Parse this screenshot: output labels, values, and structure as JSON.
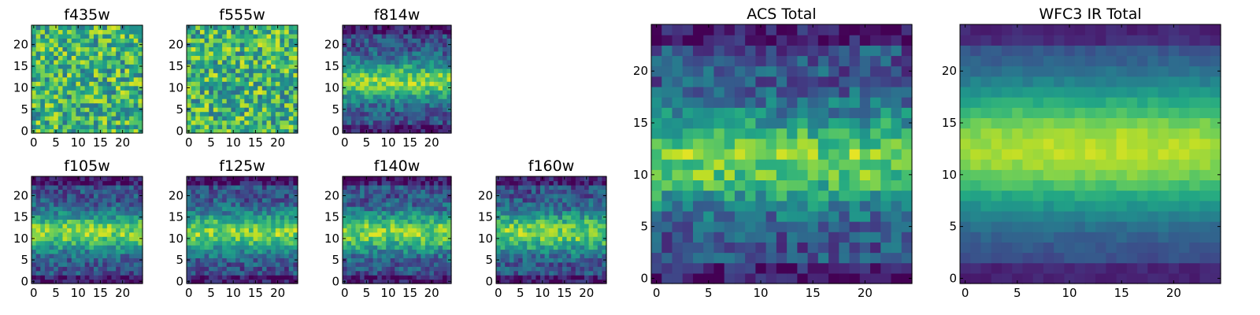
{
  "chart_data": {
    "type": "heatmap",
    "colormap": "viridis",
    "grid": false,
    "image_size": [
      25,
      25
    ],
    "panels": [
      {
        "id": "f435w",
        "title": "f435w",
        "xticks": [
          "0",
          "5",
          "10",
          "15",
          "20"
        ],
        "yticks": [
          "0",
          "5",
          "10",
          "15",
          "20"
        ],
        "pattern": "noise"
      },
      {
        "id": "f555w",
        "title": "f555w",
        "xticks": [
          "0",
          "5",
          "10",
          "15",
          "20"
        ],
        "yticks": [
          "0",
          "5",
          "10",
          "15",
          "20"
        ],
        "pattern": "noise"
      },
      {
        "id": "f814w",
        "title": "f814w",
        "xticks": [
          "0",
          "5",
          "10",
          "15",
          "20"
        ],
        "yticks": [
          "0",
          "5",
          "10",
          "15",
          "20"
        ],
        "pattern": "band"
      },
      {
        "id": "f105w",
        "title": "f105w",
        "xticks": [
          "0",
          "5",
          "10",
          "15",
          "20"
        ],
        "yticks": [
          "0",
          "5",
          "10",
          "15",
          "20"
        ],
        "pattern": "band"
      },
      {
        "id": "f125w",
        "title": "f125w",
        "xticks": [
          "0",
          "5",
          "10",
          "15",
          "20"
        ],
        "yticks": [
          "0",
          "5",
          "10",
          "15",
          "20"
        ],
        "pattern": "band"
      },
      {
        "id": "f140w",
        "title": "f140w",
        "xticks": [
          "0",
          "5",
          "10",
          "15",
          "20"
        ],
        "yticks": [
          "0",
          "5",
          "10",
          "15",
          "20"
        ],
        "pattern": "band"
      },
      {
        "id": "f160w",
        "title": "f160w",
        "xticks": [
          "0",
          "5",
          "10",
          "15",
          "20"
        ],
        "yticks": [
          "0",
          "5",
          "10",
          "15",
          "20"
        ],
        "pattern": "band"
      },
      {
        "id": "acs_total",
        "title": "ACS Total",
        "xticks": [
          "0",
          "5",
          "10",
          "15",
          "20"
        ],
        "yticks": [
          "0",
          "5",
          "10",
          "15",
          "20"
        ],
        "pattern": "band"
      },
      {
        "id": "wfc3_ir_total",
        "title": "WFC3 IR Total",
        "xticks": [
          "0",
          "5",
          "10",
          "15",
          "20"
        ],
        "yticks": [
          "0",
          "5",
          "10",
          "15",
          "20"
        ],
        "pattern": "smooth"
      }
    ]
  }
}
